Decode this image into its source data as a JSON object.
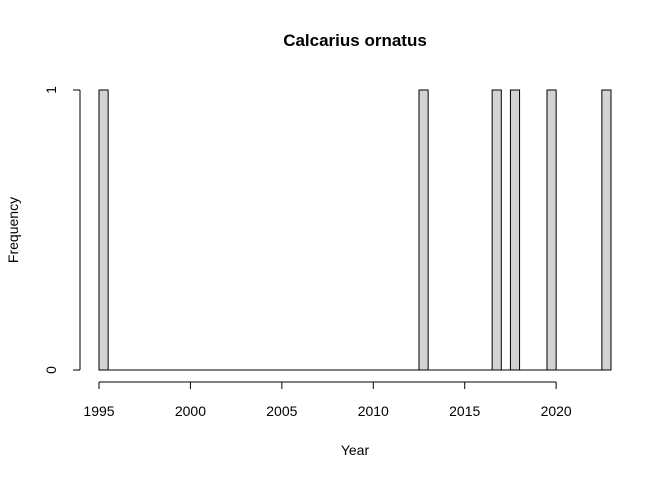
{
  "chart_data": {
    "type": "bar",
    "title": "Calcarius ornatus",
    "xlabel": "Year",
    "ylabel": "Frequency",
    "bin_width": 0.5,
    "bins_start": [
      1995,
      1995.5,
      1996,
      1996.5,
      1997,
      1997.5,
      1998,
      1998.5,
      1999,
      1999.5,
      2000,
      2000.5,
      2001,
      2001.5,
      2002,
      2002.5,
      2003,
      2003.5,
      2004,
      2004.5,
      2005,
      2005.5,
      2006,
      2006.5,
      2007,
      2007.5,
      2008,
      2008.5,
      2009,
      2009.5,
      2010,
      2010.5,
      2011,
      2011.5,
      2012,
      2012.5,
      2013,
      2013.5,
      2014,
      2014.5,
      2015,
      2015.5,
      2016,
      2016.5,
      2017,
      2017.5,
      2018,
      2018.5,
      2019,
      2019.5,
      2020,
      2020.5,
      2021,
      2021.5,
      2022,
      2022.5
    ],
    "values": [
      1,
      0,
      0,
      0,
      0,
      0,
      0,
      0,
      0,
      0,
      0,
      0,
      0,
      0,
      0,
      0,
      0,
      0,
      0,
      0,
      0,
      0,
      0,
      0,
      0,
      0,
      0,
      0,
      0,
      0,
      0,
      0,
      0,
      0,
      0,
      1,
      0,
      0,
      0,
      0,
      0,
      0,
      0,
      1,
      0,
      1,
      0,
      0,
      0,
      1,
      0,
      0,
      0,
      0,
      0,
      1
    ],
    "xlim": [
      1995,
      2023
    ],
    "ylim": [
      0,
      1
    ],
    "x_ticks": [
      1995,
      2000,
      2005,
      2010,
      2015,
      2020
    ],
    "x_tick_labels": [
      "1995",
      "2000",
      "2005",
      "2010",
      "2015",
      "2020"
    ],
    "y_ticks": [
      0,
      1
    ],
    "y_tick_labels": [
      "0",
      "1"
    ],
    "bar_color": "#d3d3d3",
    "grid": false
  }
}
